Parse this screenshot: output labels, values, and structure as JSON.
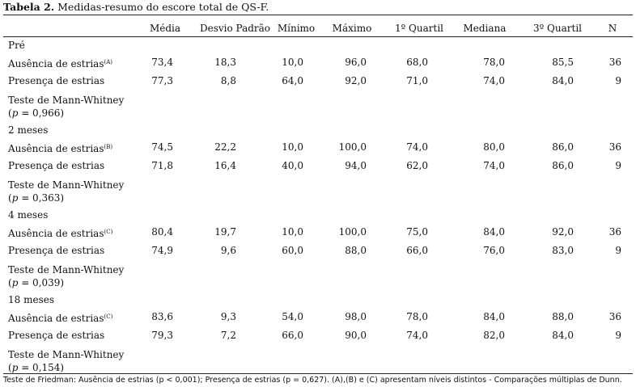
{
  "caption": {
    "label": "Tabela 2.",
    "text": " Medidas-resumo do escore total de QS-F."
  },
  "headers": [
    "Média",
    "Desvio Padrão",
    "Mínimo",
    "Máximo",
    "1º Quartil",
    "Mediana",
    "3º Quartil",
    "N"
  ],
  "groups": [
    {
      "title": "Pré",
      "rows": [
        {
          "label": "Ausência de estrias",
          "sup": "(A)",
          "values": [
            "73,4",
            "18,3",
            "10,0",
            "96,0",
            "68,0",
            "78,0",
            "85,5",
            "36"
          ]
        },
        {
          "label": "Presença de estrias",
          "sup": "",
          "values": [
            "77,3",
            "8,8",
            "64,0",
            "92,0",
            "71,0",
            "74,0",
            "84,0",
            "9"
          ]
        }
      ],
      "test": {
        "line1": "Teste de Mann-Whitney",
        "p": "p",
        "rest": " = 0,966)"
      }
    },
    {
      "title": "2 meses",
      "rows": [
        {
          "label": "Ausência de estrias",
          "sup": "(B)",
          "values": [
            "74,5",
            "22,2",
            "10,0",
            "100,0",
            "74,0",
            "80,0",
            "86,0",
            "36"
          ]
        },
        {
          "label": "Presença de estrias",
          "sup": "",
          "values": [
            "71,8",
            "16,4",
            "40,0",
            "94,0",
            "62,0",
            "74,0",
            "86,0",
            "9"
          ]
        }
      ],
      "test": {
        "line1": "Teste de Mann-Whitney",
        "p": "p",
        "rest": " = 0,363)"
      }
    },
    {
      "title": "4 meses",
      "rows": [
        {
          "label": "Ausência de estrias",
          "sup": "(C)",
          "values": [
            "80,4",
            "19,7",
            "10,0",
            "100,0",
            "75,0",
            "84,0",
            "92,0",
            "36"
          ]
        },
        {
          "label": "Presença de estrias",
          "sup": "",
          "values": [
            "74,9",
            "9,6",
            "60,0",
            "88,0",
            "66,0",
            "76,0",
            "83,0",
            "9"
          ]
        }
      ],
      "test": {
        "line1": "Teste de Mann-Whitney",
        "p": "p",
        "rest": " = 0,039)"
      }
    },
    {
      "title": "18 meses",
      "rows": [
        {
          "label": "Ausência de estrias",
          "sup": "(C)",
          "values": [
            "83,6",
            "9,3",
            "54,0",
            "98,0",
            "78,0",
            "84,0",
            "88,0",
            "36"
          ]
        },
        {
          "label": "Presença de estrias",
          "sup": "",
          "values": [
            "79,3",
            "7,2",
            "66,0",
            "90,0",
            "74,0",
            "82,0",
            "84,0",
            "9"
          ]
        }
      ],
      "test": {
        "line1": "Teste de Mann-Whitney",
        "p": "p",
        "rest": " = 0,154)"
      }
    }
  ],
  "footnote": "Teste de Friedman: Ausência de estrias (p < 0,001); Presença de estrias (p = 0,627). (A),(B) e (C) apresentam níveis distintos - Comparações múltiplas de Dunn."
}
